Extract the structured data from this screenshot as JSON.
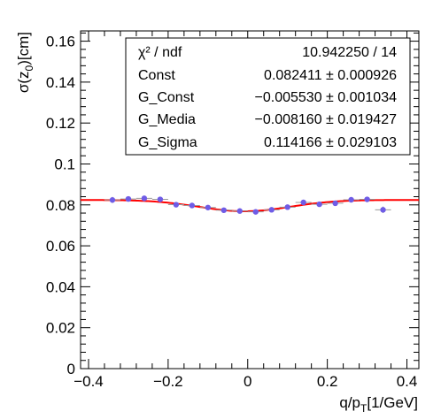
{
  "chart_data": {
    "type": "scatter",
    "xlabel_main": "q/p",
    "xlabel_sub": "T",
    "xlabel_unit": "[1/GeV]",
    "ylabel_main": "σ(z",
    "ylabel_sub": "0",
    "ylabel_unit": ")[cm]",
    "xlim": [
      -0.42,
      0.43
    ],
    "ylim": [
      0,
      0.165
    ],
    "x_major_ticks": [
      -0.4,
      -0.2,
      0,
      0.2,
      0.4
    ],
    "x_tick_labels": [
      "−0.4",
      "−0.2",
      "0",
      "0.2",
      "0.4"
    ],
    "y_major_ticks": [
      0,
      0.02,
      0.04,
      0.06,
      0.08,
      0.1,
      0.12,
      0.14,
      0.16
    ],
    "y_tick_labels": [
      "0",
      "0.02",
      "0.04",
      "0.06",
      "0.08",
      "0.1",
      "0.12",
      "0.14",
      "0.16"
    ],
    "grid": false,
    "marker_color": "#6f5ce6",
    "fit_color": "#ff0000",
    "bin_half_width": 0.02,
    "points": [
      {
        "x": -0.34,
        "y": 0.0824,
        "err": 0.0015
      },
      {
        "x": -0.3,
        "y": 0.0829,
        "err": 0.0012
      },
      {
        "x": -0.26,
        "y": 0.0832,
        "err": 0.001
      },
      {
        "x": -0.22,
        "y": 0.0827,
        "err": 0.001
      },
      {
        "x": -0.18,
        "y": 0.0801,
        "err": 0.001
      },
      {
        "x": -0.14,
        "y": 0.0797,
        "err": 0.0009
      },
      {
        "x": -0.1,
        "y": 0.0787,
        "err": 0.0009
      },
      {
        "x": -0.06,
        "y": 0.0774,
        "err": 0.0009
      },
      {
        "x": -0.02,
        "y": 0.077,
        "err": 0.0008
      },
      {
        "x": 0.02,
        "y": 0.0766,
        "err": 0.0008
      },
      {
        "x": 0.06,
        "y": 0.0776,
        "err": 0.0009
      },
      {
        "x": 0.1,
        "y": 0.0789,
        "err": 0.0009
      },
      {
        "x": 0.14,
        "y": 0.0812,
        "err": 0.001
      },
      {
        "x": 0.18,
        "y": 0.0803,
        "err": 0.001
      },
      {
        "x": 0.22,
        "y": 0.0808,
        "err": 0.001
      },
      {
        "x": 0.26,
        "y": 0.0825,
        "err": 0.0011
      },
      {
        "x": 0.3,
        "y": 0.0827,
        "err": 0.0012
      },
      {
        "x": 0.34,
        "y": 0.0776,
        "err": 0.0016
      }
    ],
    "fit": {
      "const": 0.082411,
      "g_const": -0.00553,
      "g_mean": -0.00816,
      "g_sigma": 0.114166
    },
    "stats_box": {
      "rows": [
        {
          "label": "χ² / ndf",
          "value": "10.942250 / 14"
        },
        {
          "label": "Const",
          "value": "0.082411 ± 0.000926"
        },
        {
          "label": "G_Const",
          "value": "−0.005530 ± 0.001034"
        },
        {
          "label": "G_Media",
          "value": "−0.008160 ± 0.019427"
        },
        {
          "label": "G_Sigma",
          "value": "0.114166 ± 0.029103"
        }
      ]
    }
  }
}
